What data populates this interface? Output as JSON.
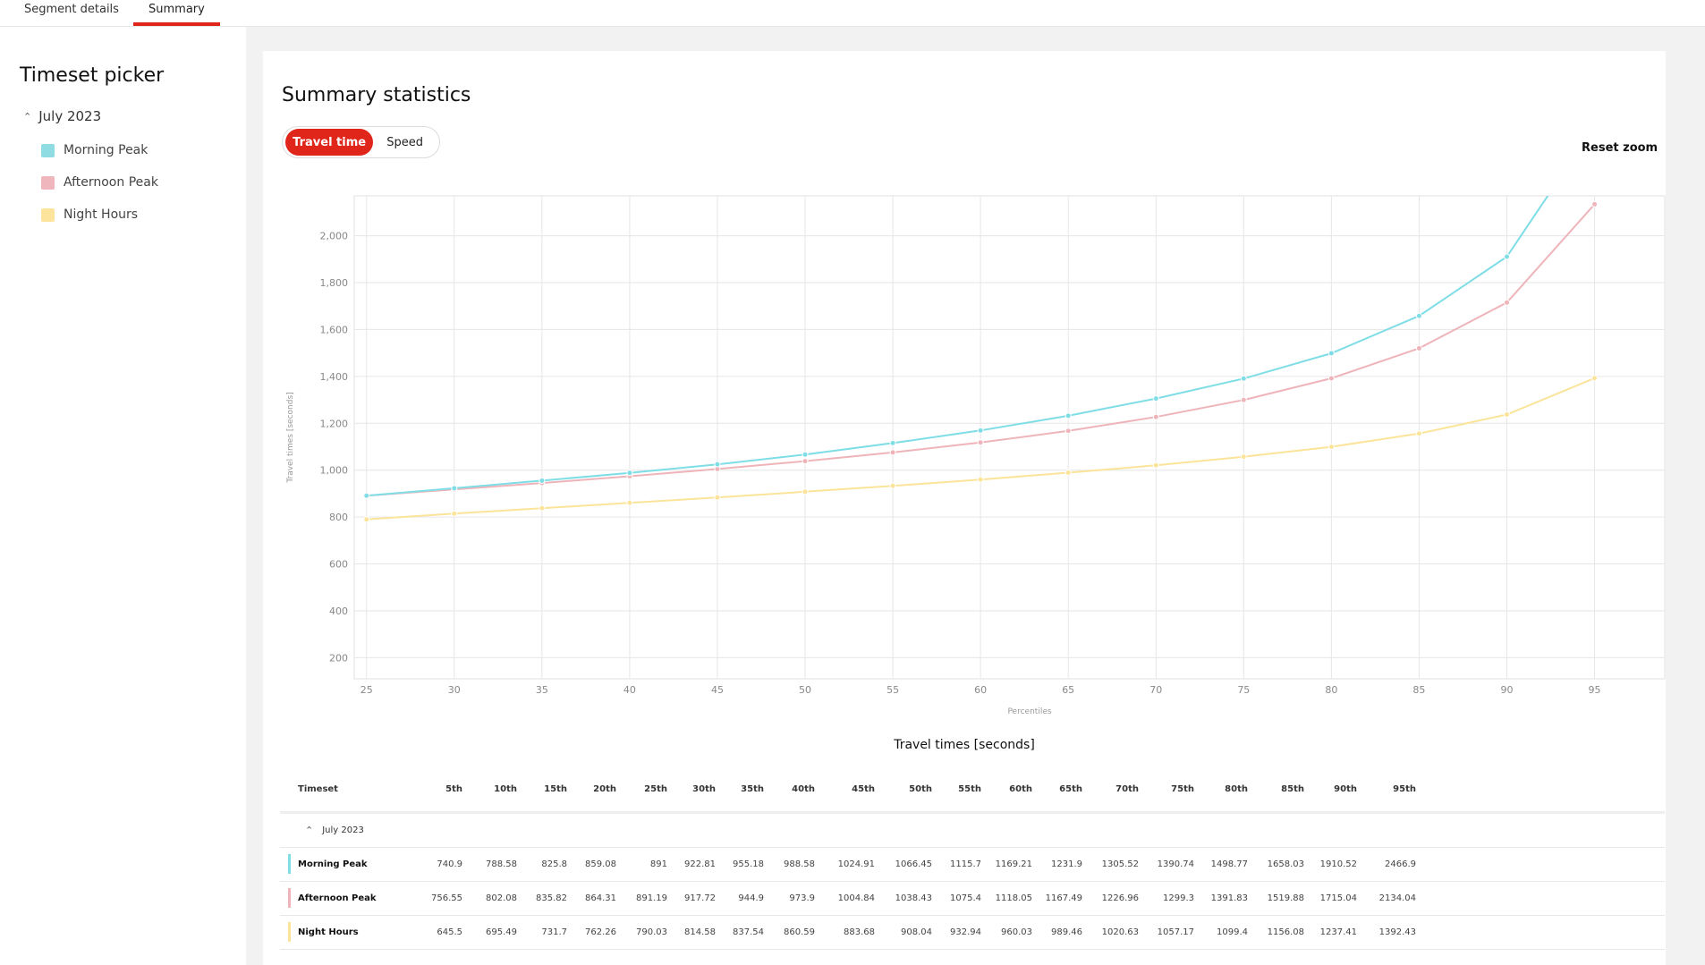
{
  "tabs": [
    {
      "label": "Segment details",
      "active": false
    },
    {
      "label": "Summary",
      "active": true
    }
  ],
  "sidebar": {
    "title": "Timeset picker",
    "group": "July 2023",
    "items": [
      {
        "label": "Morning Peak",
        "color": "#8fdce3"
      },
      {
        "label": "Afternoon Peak",
        "color": "#f0b6bd"
      },
      {
        "label": "Night Hours",
        "color": "#fde49c"
      }
    ]
  },
  "main": {
    "title": "Summary statistics",
    "toggle": {
      "active": "Travel time",
      "inactive": "Speed"
    },
    "reset_zoom": "Reset zoom",
    "table_title": "Travel times [seconds]"
  },
  "chart_data": {
    "type": "line",
    "title": "",
    "xlabel": "Percentiles",
    "ylabel": "Travel times [seconds]",
    "x": [
      25,
      30,
      35,
      40,
      45,
      50,
      55,
      60,
      65,
      70,
      75,
      80,
      85,
      90,
      95
    ],
    "xlim": [
      24.3,
      99
    ],
    "ylim": [
      110,
      2170
    ],
    "y_ticks": [
      200,
      400,
      600,
      800,
      1000,
      1200,
      1400,
      1600,
      1800,
      2000
    ],
    "y_tick_labels": [
      "200",
      "400",
      "600",
      "800",
      "1,000",
      "1,200",
      "1,400",
      "1,600",
      "1,800",
      "2,000"
    ],
    "grid": true,
    "series": [
      {
        "name": "Morning Peak",
        "color": "#7fdde6",
        "values": [
          891,
          922.81,
          955.18,
          988.58,
          1024.91,
          1066.45,
          1115.7,
          1169.21,
          1231.9,
          1305.52,
          1390.74,
          1498.77,
          1658.03,
          1910.52,
          2466.9
        ]
      },
      {
        "name": "Afternoon Peak",
        "color": "#eeb4ba",
        "values": [
          891.19,
          917.72,
          944.9,
          973.9,
          1004.84,
          1038.43,
          1075.4,
          1118.05,
          1167.49,
          1226.96,
          1299.3,
          1391.83,
          1519.88,
          1715.04,
          2134.04
        ]
      },
      {
        "name": "Night Hours",
        "color": "#fbe49a",
        "values": [
          790.03,
          814.58,
          837.54,
          860.59,
          883.68,
          908.04,
          932.94,
          960.03,
          989.46,
          1020.63,
          1057.17,
          1099.4,
          1156.08,
          1237.41,
          1392.43
        ]
      }
    ]
  },
  "table": {
    "timeset_header": "Timeset",
    "columns": [
      "5th",
      "10th",
      "15th",
      "20th",
      "25th",
      "30th",
      "35th",
      "40th",
      "45th",
      "50th",
      "55th",
      "60th",
      "65th",
      "70th",
      "75th",
      "80th",
      "85th",
      "90th",
      "95th"
    ],
    "group_label": "July 2023",
    "rows": [
      {
        "name": "Morning Peak",
        "color": "#7fdde6",
        "values": [
          "740.9",
          "788.58",
          "825.8",
          "859.08",
          "891",
          "922.81",
          "955.18",
          "988.58",
          "1024.91",
          "1066.45",
          "1115.7",
          "1169.21",
          "1231.9",
          "1305.52",
          "1390.74",
          "1498.77",
          "1658.03",
          "1910.52",
          "2466.9"
        ]
      },
      {
        "name": "Afternoon Peak",
        "color": "#eeb4ba",
        "values": [
          "756.55",
          "802.08",
          "835.82",
          "864.31",
          "891.19",
          "917.72",
          "944.9",
          "973.9",
          "1004.84",
          "1038.43",
          "1075.4",
          "1118.05",
          "1167.49",
          "1226.96",
          "1299.3",
          "1391.83",
          "1519.88",
          "1715.04",
          "2134.04"
        ]
      },
      {
        "name": "Night Hours",
        "color": "#fbe49a",
        "values": [
          "645.5",
          "695.49",
          "731.7",
          "762.26",
          "790.03",
          "814.58",
          "837.54",
          "860.59",
          "883.68",
          "908.04",
          "932.94",
          "960.03",
          "989.46",
          "1020.63",
          "1057.17",
          "1099.4",
          "1156.08",
          "1237.41",
          "1392.43"
        ]
      }
    ]
  }
}
